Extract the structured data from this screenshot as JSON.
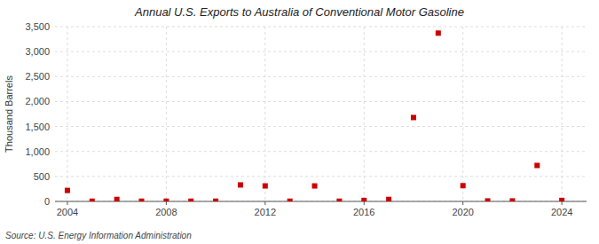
{
  "chart_data": {
    "type": "scatter",
    "title": "Annual U.S. Exports to Australia of Conventional Motor Gasoline",
    "ylabel": "Thousand Barrels",
    "source": "Source: U.S. Energy Information Administration",
    "x": [
      2004,
      2005,
      2006,
      2007,
      2008,
      2009,
      2010,
      2011,
      2012,
      2013,
      2014,
      2015,
      2016,
      2017,
      2018,
      2019,
      2020,
      2021,
      2022,
      2023,
      2024
    ],
    "values": [
      220,
      5,
      40,
      5,
      5,
      5,
      5,
      330,
      310,
      5,
      310,
      5,
      20,
      40,
      1680,
      3370,
      315,
      10,
      10,
      720,
      20
    ],
    "color": "#cc0000",
    "marker": "square",
    "xlim": [
      2003.5,
      2025
    ],
    "ylim": [
      0,
      3500
    ],
    "xticks": [
      2004,
      2008,
      2012,
      2016,
      2020,
      2024
    ],
    "yticks": [
      0,
      500,
      {
        "value": 1000,
        "label": "1,000"
      },
      {
        "value": 1500,
        "label": "1,500"
      },
      {
        "value": 2000,
        "label": "2,000"
      },
      {
        "value": 2500,
        "label": "2,500"
      },
      {
        "value": 3000,
        "label": "3,000"
      },
      {
        "value": 3500,
        "label": "3,500"
      }
    ],
    "grid": true
  }
}
